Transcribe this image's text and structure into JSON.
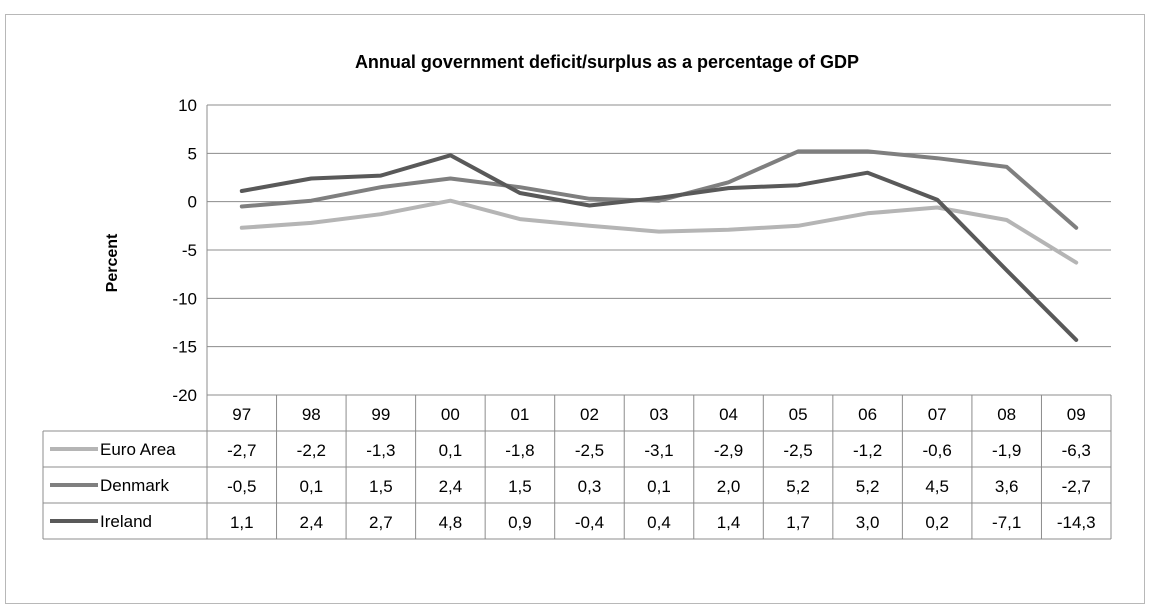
{
  "chart_data": {
    "type": "line",
    "title": "Annual government deficit/surplus as a percentage of GDP",
    "ylabel": "Percent",
    "xlabel": "",
    "categories": [
      "97",
      "98",
      "99",
      "00",
      "01",
      "02",
      "03",
      "04",
      "05",
      "06",
      "07",
      "08",
      "09"
    ],
    "ylim": [
      -20,
      10
    ],
    "yticks": [
      "10",
      "5",
      "0",
      "-5",
      "-10",
      "-15",
      "-20"
    ],
    "grid": true,
    "data_table": true,
    "series": [
      {
        "name": "Euro Area",
        "color": "#b5b5b5",
        "values": [
          -2.7,
          -2.2,
          -1.3,
          0.1,
          -1.8,
          -2.5,
          -3.1,
          -2.9,
          -2.5,
          -1.2,
          -0.6,
          -1.9,
          -6.3
        ],
        "labels": [
          "-2,7",
          "-2,2",
          "-1,3",
          "0,1",
          "-1,8",
          "-2,5",
          "-3,1",
          "-2,9",
          "-2,5",
          "-1,2",
          "-0,6",
          "-1,9",
          "-6,3"
        ]
      },
      {
        "name": "Denmark",
        "color": "#7f7f7f",
        "values": [
          -0.5,
          0.1,
          1.5,
          2.4,
          1.5,
          0.3,
          0.1,
          2.0,
          5.2,
          5.2,
          4.5,
          3.6,
          -2.7
        ],
        "labels": [
          "-0,5",
          "0,1",
          "1,5",
          "2,4",
          "1,5",
          "0,3",
          "0,1",
          "2,0",
          "5,2",
          "5,2",
          "4,5",
          "3,6",
          "-2,7"
        ]
      },
      {
        "name": "Ireland",
        "color": "#595959",
        "values": [
          1.1,
          2.4,
          2.7,
          4.8,
          0.9,
          -0.4,
          0.4,
          1.4,
          1.7,
          3.0,
          0.2,
          -7.1,
          -14.3
        ],
        "labels": [
          "1,1",
          "2,4",
          "2,7",
          "4,8",
          "0,9",
          "-0,4",
          "0,4",
          "1,4",
          "1,7",
          "3,0",
          "0,2",
          "-7,1",
          "-14,3"
        ]
      }
    ]
  }
}
